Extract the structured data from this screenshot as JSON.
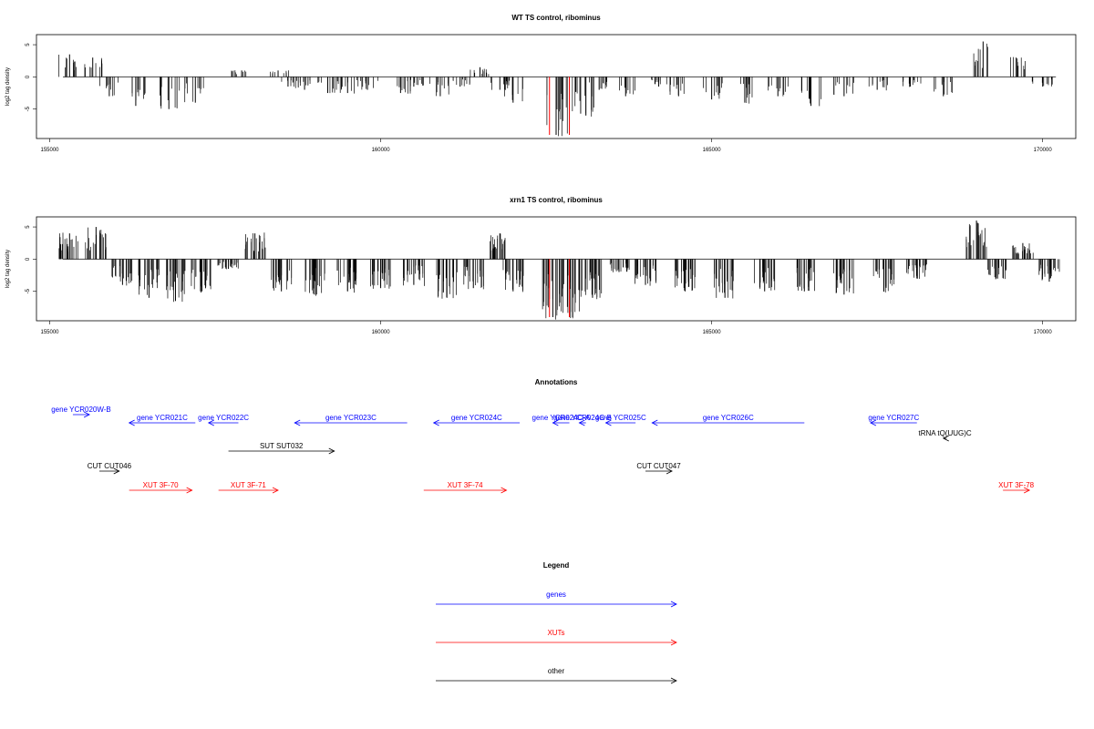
{
  "chart_data": [
    {
      "type": "bar",
      "title": "WT TS control, ribominus",
      "ylabel": "log2 tag density",
      "xlim": [
        155000,
        170200
      ],
      "ylim": [
        -9,
        6
      ],
      "xticks": [
        155000,
        160000,
        165000,
        170000
      ],
      "yticks": [
        -5,
        0,
        5
      ],
      "x": [
        155300,
        155650,
        155900,
        156300,
        156800,
        157200,
        157900,
        158450,
        158600,
        158850,
        159200,
        159500,
        159800,
        160300,
        160500,
        160900,
        161200,
        161500,
        161800,
        162000,
        162650,
        162850,
        163100,
        163300,
        163700,
        164200,
        164500,
        165000,
        165500,
        166000,
        166500,
        167000,
        167500,
        168000,
        168500,
        169100,
        169600,
        170000
      ],
      "values": [
        3.5,
        3,
        -3,
        -4.5,
        -5,
        -4,
        1,
        1,
        -1.5,
        -2,
        -2.5,
        -2.5,
        -2,
        -2.5,
        -1.5,
        -3,
        -1.5,
        1.5,
        -2,
        -4,
        -9,
        -9,
        -6,
        -2,
        -3,
        -1.5,
        -3,
        -3.5,
        -4,
        -3,
        -4.5,
        -3,
        -2,
        -1.5,
        -3,
        5.5,
        3,
        -1.5
      ],
      "highlights": [
        162550,
        162850
      ],
      "highlight_color": "#ff0000"
    },
    {
      "type": "bar",
      "title": "xrn1 TS control, ribominus",
      "ylabel": "log2 tag density",
      "xlim": [
        155000,
        170200
      ],
      "ylim": [
        -9,
        6
      ],
      "xticks": [
        155000,
        160000,
        165000,
        170000
      ],
      "yticks": [
        -5,
        0,
        5
      ],
      "x": [
        155300,
        155700,
        156100,
        156500,
        156900,
        157300,
        157700,
        158100,
        158500,
        159000,
        159500,
        160000,
        160500,
        161000,
        161400,
        161800,
        162000,
        162600,
        162900,
        163200,
        163600,
        164000,
        164600,
        165200,
        165800,
        166400,
        167000,
        167600,
        168100,
        169000,
        169300,
        169700,
        170100
      ],
      "values": [
        4,
        5,
        -4,
        -6,
        -6.5,
        -5,
        -1.5,
        4,
        -5,
        -5.5,
        -5,
        -4.5,
        -4,
        -6,
        -4.5,
        4,
        -5,
        -9,
        -9,
        -6,
        -2,
        -4,
        -5,
        -6,
        -5,
        -5,
        -5.5,
        -5,
        -3,
        6,
        -3,
        2.5,
        -3.5
      ],
      "highlights": [
        162550,
        162850
      ],
      "highlight_color": "#ff0000"
    }
  ],
  "annotations": {
    "title": "Annotations",
    "xlim": [
      155000,
      170200
    ],
    "items": [
      {
        "label": "gene YCR020W-B",
        "start": 155350,
        "end": 155600,
        "dir": "right",
        "color": "#0000ff",
        "row": 0
      },
      {
        "label": "gene YCR021C",
        "start": 156200,
        "end": 157200,
        "dir": "left",
        "color": "#0000ff",
        "row": 1
      },
      {
        "label": "gene YCR022C",
        "start": 157400,
        "end": 157850,
        "dir": "left",
        "color": "#0000ff",
        "row": 1
      },
      {
        "label": "gene YCR023C",
        "start": 158700,
        "end": 160400,
        "dir": "left",
        "color": "#0000ff",
        "row": 1
      },
      {
        "label": "gene YCR024C",
        "start": 160800,
        "end": 162100,
        "dir": "left",
        "color": "#0000ff",
        "row": 1
      },
      {
        "label": "gene YCR024C-A",
        "start": 162600,
        "end": 162850,
        "dir": "left",
        "color": "#0000ff",
        "row": 1
      },
      {
        "label": "gene YCR024C-B",
        "start": 163000,
        "end": 163100,
        "dir": "left",
        "color": "#0000ff",
        "row": 1
      },
      {
        "label": "gene YCR025C",
        "start": 163400,
        "end": 163850,
        "dir": "left",
        "color": "#0000ff",
        "row": 1
      },
      {
        "label": "gene YCR026C",
        "start": 164100,
        "end": 166400,
        "dir": "left",
        "color": "#0000ff",
        "row": 1
      },
      {
        "label": "gene YCR027C",
        "start": 167400,
        "end": 168100,
        "dir": "left",
        "color": "#0000ff",
        "row": 1
      },
      {
        "label": "tRNA tQ(UUG)C",
        "start": 168500,
        "end": 168550,
        "dir": "left",
        "color": "#000000",
        "row": 2
      },
      {
        "label": "SUT SUT032",
        "start": 157700,
        "end": 159300,
        "dir": "right",
        "color": "#000000",
        "row": 3
      },
      {
        "label": "CUT CUT046",
        "start": 155750,
        "end": 156050,
        "dir": "right",
        "color": "#000000",
        "row": 4
      },
      {
        "label": "CUT CUT047",
        "start": 164000,
        "end": 164400,
        "dir": "right",
        "color": "#000000",
        "row": 4
      },
      {
        "label": "XUT 3F-70",
        "start": 156200,
        "end": 157150,
        "dir": "right",
        "color": "#ff0000",
        "row": 5
      },
      {
        "label": "XUT 3F-71",
        "start": 157550,
        "end": 158450,
        "dir": "right",
        "color": "#ff0000",
        "row": 5
      },
      {
        "label": "XUT 3F-74",
        "start": 160650,
        "end": 161900,
        "dir": "right",
        "color": "#ff0000",
        "row": 5
      },
      {
        "label": "XUT 3F-78",
        "start": 169400,
        "end": 169800,
        "dir": "right",
        "color": "#ff0000",
        "row": 5
      }
    ]
  },
  "legend": {
    "title": "Legend",
    "items": [
      {
        "label": "genes",
        "color": "#0000ff"
      },
      {
        "label": "XUTs",
        "color": "#ff0000"
      },
      {
        "label": "other",
        "color": "#000000"
      }
    ]
  }
}
